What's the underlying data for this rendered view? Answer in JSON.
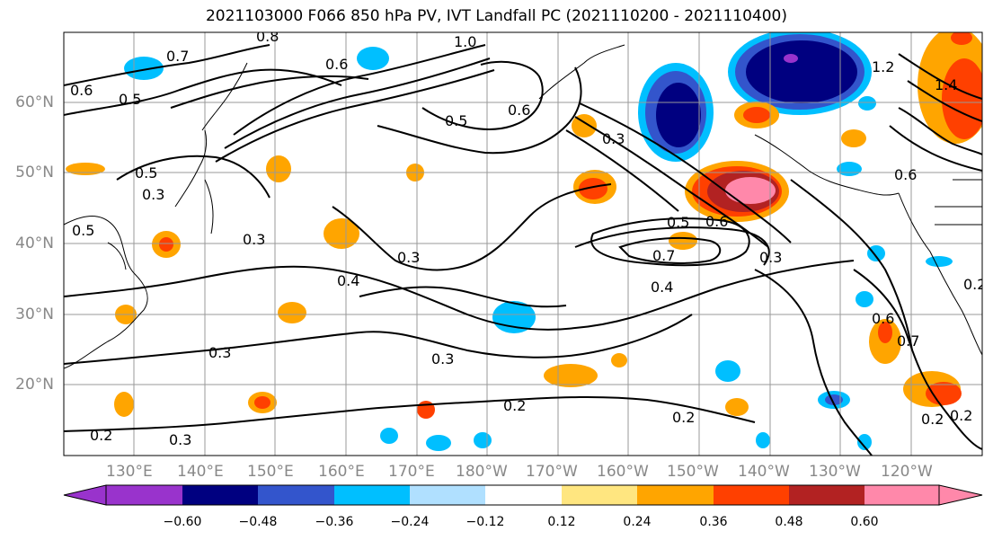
{
  "title": "2021103000 F066 850 hPa PV, IVT Landfall PC (2021110200 - 2021110400)",
  "map": {
    "lat_labels": [
      "60°N",
      "50°N",
      "40°N",
      "30°N",
      "20°N"
    ],
    "lon_labels": [
      "130°E",
      "140°E",
      "150°E",
      "160°E",
      "170°E",
      "180°W",
      "170°W",
      "160°W",
      "150°W",
      "140°W",
      "130°W",
      "120°W"
    ],
    "contour_labels": [
      "0.8",
      "0.7",
      "0.6",
      "0.5",
      "1.0",
      "0.6",
      "0.5",
      "0.6",
      "0.3",
      "0.5",
      "0.3",
      "0.5",
      "0.3",
      "0.4",
      "0.3",
      "0.3",
      "0.5",
      "0.6",
      "0.7",
      "0.3",
      "0.4",
      "0.3",
      "0.2",
      "0.2",
      "0.3",
      "0.2",
      "0.6",
      "0.7",
      "0.2",
      "0.2",
      "0.2",
      "0.6",
      "1.2",
      "1.4"
    ],
    "coastline_color": "#000000"
  },
  "colorbar": {
    "colors": [
      "#9933cc",
      "#000080",
      "#3355cc",
      "#00bfff",
      "#b0e0ff",
      "#ffffff",
      "#ffe680",
      "#ffa500",
      "#ff4000",
      "#b22222",
      "#ff88aa"
    ],
    "tick_labels": [
      "−0.60",
      "−0.48",
      "−0.36",
      "−0.24",
      "−0.12",
      "0.12",
      "0.24",
      "0.36",
      "0.48",
      "0.60"
    ]
  }
}
